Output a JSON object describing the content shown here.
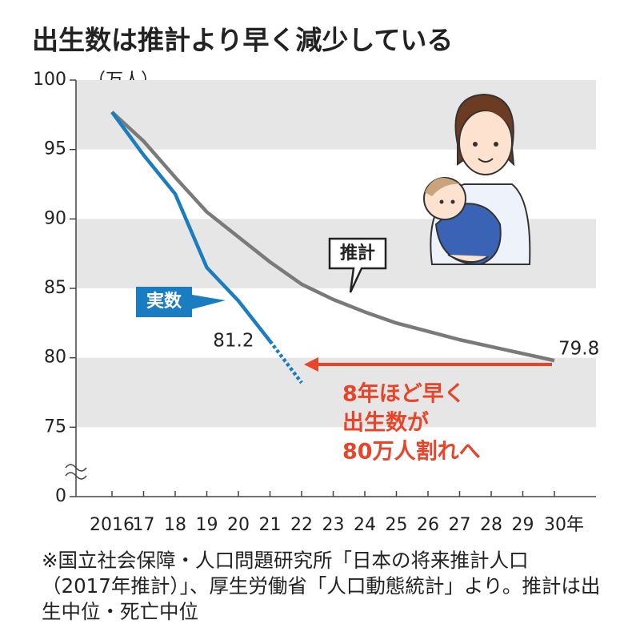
{
  "chart_data": {
    "type": "line",
    "title": "出生数は推計より早く減少している",
    "y_unit": "（万人）",
    "categories": [
      "2016",
      "17",
      "18",
      "19",
      "20",
      "21",
      "22",
      "23",
      "24",
      "25",
      "26",
      "27",
      "28",
      "29",
      "30年"
    ],
    "series": [
      {
        "name": "推計",
        "color": "#7a7a7a",
        "values": [
          97.7,
          95.6,
          93.0,
          90.5,
          88.7,
          86.9,
          85.3,
          84.2,
          83.3,
          82.5,
          81.9,
          81.3,
          80.8,
          80.3,
          79.8
        ],
        "label_end": true
      },
      {
        "name": "実数",
        "color": "#1a7cc1",
        "values": [
          97.7,
          94.6,
          91.8,
          86.5,
          84.1,
          81.2,
          78.2,
          null,
          null,
          null,
          null,
          null,
          null,
          null,
          null
        ],
        "dash_start": "21",
        "label_end": true
      }
    ],
    "ylim": [
      0,
      100
    ],
    "yticks": [
      0,
      75,
      80,
      85,
      90,
      95,
      100
    ],
    "axis_break": true,
    "grid": "bands",
    "annotations": [
      {
        "lines": [
          "8年ほど早く",
          "出生数が",
          "80万人割れへ"
        ],
        "color": "#e8442a",
        "from": "30年",
        "to": "22"
      }
    ],
    "note": [
      "※国立社会保障・人口問題研究所「日本の将来推計人口",
      "（2017年推計）」、厚生労働省「人口動態統計」より。推計は出",
      "生中位・死亡中位"
    ]
  }
}
